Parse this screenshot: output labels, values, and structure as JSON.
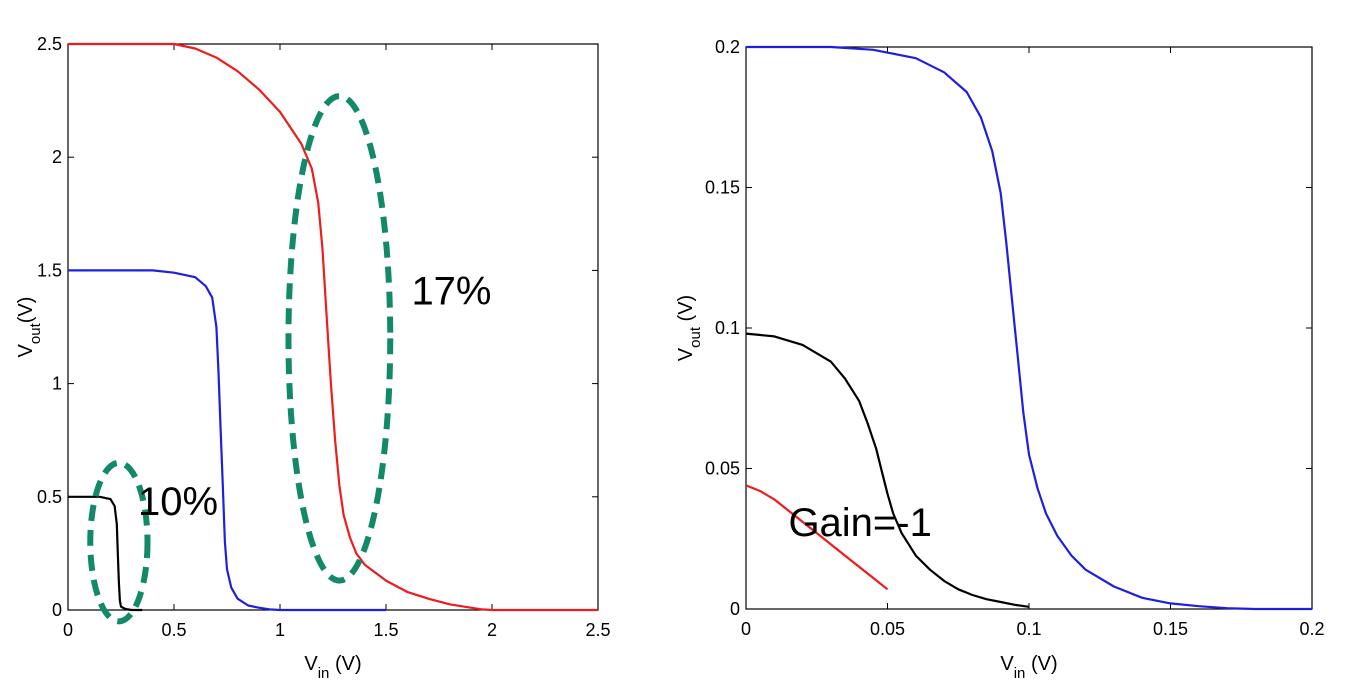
{
  "chart_data": [
    {
      "type": "line",
      "xlabel_main": "V",
      "xlabel_sub": "in",
      "xlabel_unit": " (V)",
      "ylabel_main": "V",
      "ylabel_sub": "out",
      "ylabel_unit": "(V)",
      "xlim": [
        0,
        2.5
      ],
      "ylim": [
        0,
        2.5
      ],
      "xticks": [
        0,
        0.5,
        1,
        1.5,
        2,
        2.5
      ],
      "xtick_labels": [
        "0",
        "0.5",
        "1",
        "1.5",
        "2",
        "2.5"
      ],
      "yticks": [
        0,
        0.5,
        1,
        1.5,
        2,
        2.5
      ],
      "ytick_labels": [
        "0",
        "0.5",
        "1",
        "1.5",
        "2",
        "2.5"
      ],
      "grid": false,
      "series": [
        {
          "color": "#ee1c1c",
          "x": [
            0,
            0.3,
            0.5,
            0.6,
            0.7,
            0.8,
            0.9,
            1.0,
            1.1,
            1.15,
            1.18,
            1.2,
            1.22,
            1.24,
            1.26,
            1.28,
            1.3,
            1.33,
            1.36,
            1.4,
            1.5,
            1.6,
            1.7,
            1.8,
            1.9,
            1.95,
            2.0,
            2.5
          ],
          "y": [
            2.5,
            2.5,
            2.5,
            2.48,
            2.44,
            2.38,
            2.3,
            2.2,
            2.06,
            1.95,
            1.8,
            1.6,
            1.3,
            1.0,
            0.75,
            0.55,
            0.42,
            0.32,
            0.25,
            0.2,
            0.13,
            0.08,
            0.05,
            0.025,
            0.01,
            0.003,
            0.0,
            0.0
          ]
        },
        {
          "color": "#1f1fe0",
          "x": [
            0,
            0.4,
            0.5,
            0.6,
            0.65,
            0.68,
            0.7,
            0.71,
            0.72,
            0.73,
            0.74,
            0.75,
            0.77,
            0.8,
            0.85,
            0.9,
            0.95,
            1.0,
            1.5
          ],
          "y": [
            1.5,
            1.5,
            1.49,
            1.47,
            1.43,
            1.38,
            1.25,
            1.05,
            0.8,
            0.55,
            0.3,
            0.18,
            0.1,
            0.05,
            0.02,
            0.01,
            0.003,
            0.0,
            0.0
          ]
        },
        {
          "color": "#000000",
          "x": [
            0,
            0.15,
            0.2,
            0.22,
            0.23,
            0.235,
            0.24,
            0.245,
            0.25,
            0.27,
            0.3,
            0.35
          ],
          "y": [
            0.5,
            0.5,
            0.49,
            0.46,
            0.38,
            0.25,
            0.12,
            0.04,
            0.015,
            0.005,
            0.0,
            0.0
          ]
        }
      ],
      "annotations": [
        {
          "text": "17%",
          "x": 1.62,
          "y": 1.35
        },
        {
          "text": "10%",
          "x": 0.33,
          "y": 0.42
        }
      ],
      "ellipses": [
        {
          "color": "#128a6a",
          "cx": 1.28,
          "cy": 1.2,
          "rx": 0.24,
          "ry": 1.07
        },
        {
          "color": "#128a6a",
          "cx": 0.24,
          "cy": 0.3,
          "rx": 0.135,
          "ry": 0.35
        }
      ]
    },
    {
      "type": "line",
      "xlabel_main": "V",
      "xlabel_sub": "in",
      "xlabel_unit": " (V)",
      "ylabel_main": "V",
      "ylabel_sub": "out",
      "ylabel_unit": " (V)",
      "xlim": [
        0,
        0.2
      ],
      "ylim": [
        0,
        0.2
      ],
      "xticks": [
        0,
        0.05,
        0.1,
        0.15,
        0.2
      ],
      "xtick_labels": [
        "0",
        "0.05",
        "0.1",
        "0.15",
        "0.2"
      ],
      "yticks": [
        0,
        0.05,
        0.1,
        0.15,
        0.2
      ],
      "ytick_labels": [
        "0",
        "0.05",
        "0.1",
        "0.15",
        "0.2"
      ],
      "grid": false,
      "series": [
        {
          "color": "#1f1fe0",
          "x": [
            0,
            0.03,
            0.045,
            0.06,
            0.07,
            0.078,
            0.083,
            0.087,
            0.09,
            0.092,
            0.094,
            0.096,
            0.098,
            0.1,
            0.103,
            0.106,
            0.11,
            0.115,
            0.12,
            0.13,
            0.14,
            0.15,
            0.16,
            0.17,
            0.18,
            0.19,
            0.2
          ],
          "y": [
            0.2,
            0.2,
            0.199,
            0.196,
            0.191,
            0.184,
            0.175,
            0.163,
            0.148,
            0.13,
            0.11,
            0.09,
            0.07,
            0.055,
            0.043,
            0.034,
            0.026,
            0.019,
            0.014,
            0.008,
            0.004,
            0.002,
            0.001,
            0.0003,
            0.0,
            0.0,
            0.0
          ]
        },
        {
          "color": "#000000",
          "x": [
            0,
            0.01,
            0.02,
            0.03,
            0.035,
            0.04,
            0.043,
            0.046,
            0.048,
            0.05,
            0.052,
            0.055,
            0.06,
            0.065,
            0.07,
            0.075,
            0.08,
            0.085,
            0.09,
            0.095,
            0.1
          ],
          "y": [
            0.098,
            0.097,
            0.094,
            0.088,
            0.082,
            0.074,
            0.066,
            0.057,
            0.049,
            0.041,
            0.034,
            0.027,
            0.019,
            0.014,
            0.01,
            0.007,
            0.005,
            0.0035,
            0.0025,
            0.0015,
            0.0008
          ]
        },
        {
          "color": "#ee1c1c",
          "x": [
            0,
            0.005,
            0.01,
            0.015,
            0.02,
            0.025,
            0.03,
            0.035,
            0.04,
            0.045,
            0.05
          ],
          "y": [
            0.044,
            0.042,
            0.039,
            0.035,
            0.031,
            0.027,
            0.023,
            0.019,
            0.015,
            0.011,
            0.007
          ]
        }
      ],
      "annotations": [
        {
          "text": "Gain=-1",
          "x": 0.015,
          "y": 0.026
        }
      ]
    }
  ]
}
